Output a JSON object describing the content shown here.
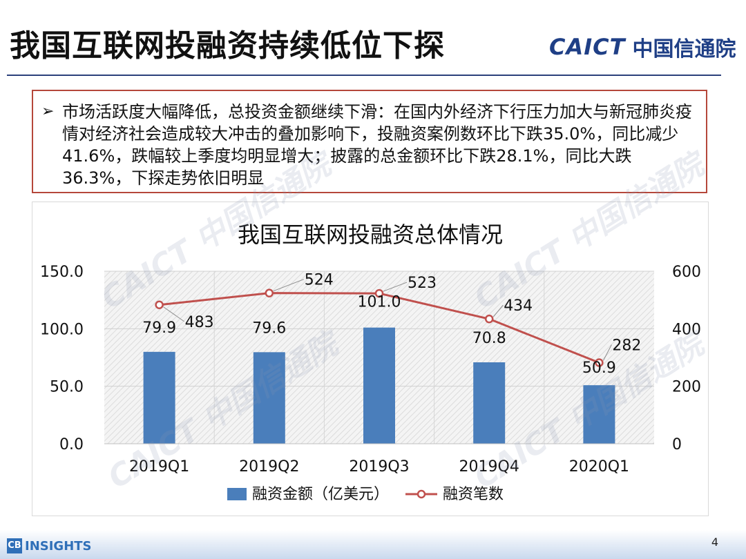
{
  "page": {
    "title": "我国互联网投融资持续低位下探",
    "logo_mark": "CAICT",
    "logo_cn": "中国信通院",
    "page_number": "4",
    "footer_logo_mark": "CB",
    "footer_logo_text": "INSIGHTS",
    "watermark_text": "CAICT 中国信通院"
  },
  "bullet": {
    "mark": "➢",
    "text": "市场活跃度大幅降低，总投资金额继续下滑：在国内外经济下行压力加大与新冠肺炎疫情对经济社会造成较大冲击的叠加影响下，投融资案例数环比下跌35.0%，同比减少41.6%，跌幅较上季度均明显增大；披露的总金额环比下跌28.1%，同比大跌36.3%，下探走势依旧明显"
  },
  "chart_data": {
    "type": "bar",
    "title": "我国互联网投融资总体情况",
    "categories": [
      "2019Q1",
      "2019Q2",
      "2019Q3",
      "2019Q4",
      "2020Q1"
    ],
    "series": [
      {
        "name": "融资金额（亿美元）",
        "type": "bar",
        "axis": "left",
        "color": "#4a7ebb",
        "values": [
          79.9,
          79.6,
          101.0,
          70.8,
          50.9
        ],
        "labels": [
          "79.9",
          "79.6",
          "101.0",
          "70.8",
          "50.9"
        ]
      },
      {
        "name": "融资笔数",
        "type": "line",
        "axis": "right",
        "color": "#c0504d",
        "values": [
          483,
          524,
          523,
          434,
          282
        ],
        "labels": [
          "483",
          "524",
          "523",
          "434",
          "282"
        ]
      }
    ],
    "y_left": {
      "min": 0,
      "max": 150,
      "ticks": [
        "0.0",
        "50.0",
        "100.0",
        "150.0"
      ]
    },
    "y_right": {
      "min": 0,
      "max": 600,
      "ticks": [
        "0",
        "200",
        "400",
        "600"
      ]
    },
    "grid": true,
    "legend_position": "bottom"
  }
}
